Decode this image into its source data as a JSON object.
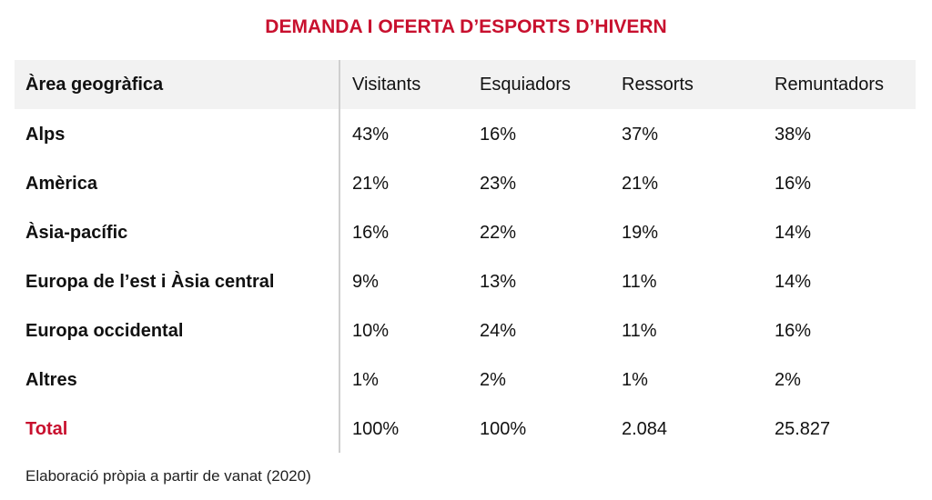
{
  "title": "DEMANDA I OFERTA D’ESPORTS D’HIVERN",
  "table": {
    "header": [
      "Àrea geogràfica",
      "Visitants",
      "Esquiadors",
      "Ressorts",
      "Remuntadors"
    ],
    "rows": [
      [
        "Alps",
        "43%",
        "16%",
        "37%",
        "38%"
      ],
      [
        "Amèrica",
        "21%",
        "23%",
        "21%",
        "16%"
      ],
      [
        "Àsia-pacífic",
        "16%",
        "22%",
        "19%",
        "14%"
      ],
      [
        "Europa de l’est i Àsia central",
        "9%",
        "13%",
        "11%",
        "14%"
      ],
      [
        "Europa occidental",
        "10%",
        "24%",
        "11%",
        "16%"
      ],
      [
        "Altres",
        "1%",
        "2%",
        "1%",
        "2%"
      ],
      [
        "Total",
        "100%",
        "100%",
        "2.084",
        "25.827"
      ]
    ]
  },
  "source": "Elaboració pròpia a partir de vanat (2020)"
}
